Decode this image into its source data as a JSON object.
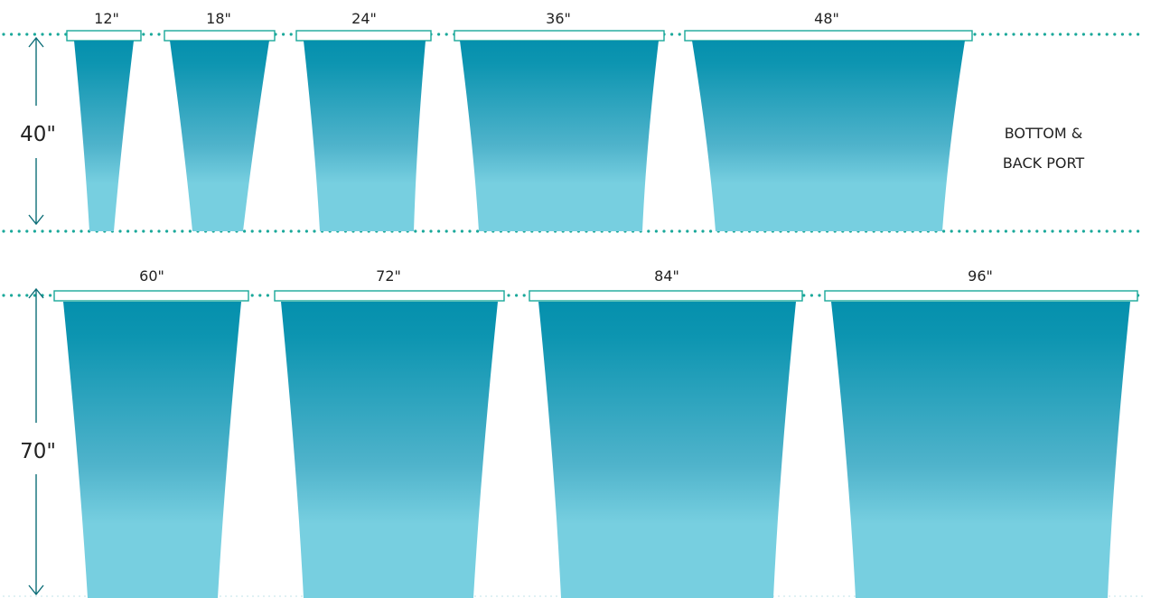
{
  "colors": {
    "accent": "#1aa89a",
    "tank_top": "#0590ad",
    "tank_bottom": "#77cfe0",
    "arrow": "#0d6e78",
    "text": "#222222"
  },
  "rows": [
    {
      "height_label": "40\"",
      "tanks": [
        {
          "label": "12\""
        },
        {
          "label": "18\""
        },
        {
          "label": "24\""
        },
        {
          "label": "36\""
        },
        {
          "label": "48\""
        }
      ]
    },
    {
      "height_label": "70\"",
      "tanks": [
        {
          "label": "60\""
        },
        {
          "label": "72\""
        },
        {
          "label": "84\""
        },
        {
          "label": "96\""
        }
      ]
    }
  ],
  "note": {
    "line1": "BOTTOM &",
    "line2": "BACK PORT"
  }
}
